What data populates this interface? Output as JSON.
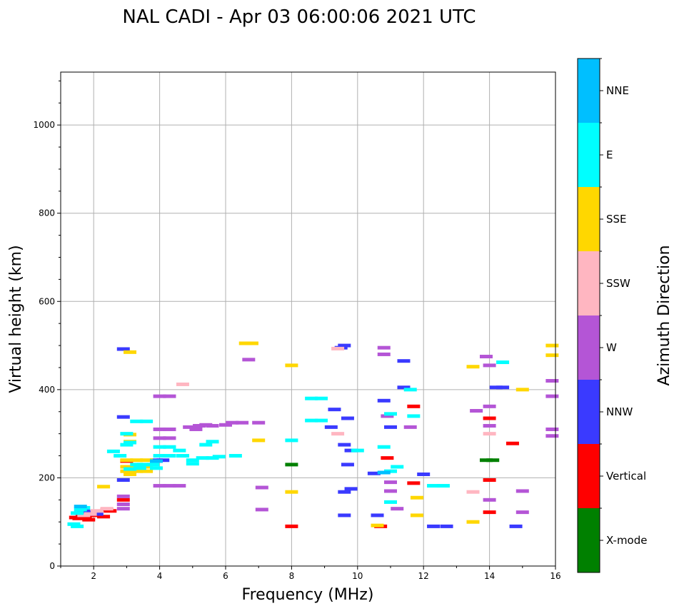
{
  "chart_data": {
    "type": "scatter",
    "title": "NAL CADI - Apr 03 06:00:06 2021 UTC",
    "xlabel": "Frequency (MHz)",
    "ylabel": "Virtual height (km)",
    "xlim": [
      1,
      16
    ],
    "ylim": [
      0,
      1120
    ],
    "xticks": [
      2,
      4,
      6,
      8,
      10,
      12,
      14,
      16
    ],
    "yticks": [
      0,
      200,
      400,
      600,
      800,
      1000
    ],
    "grid": true,
    "colorbar": {
      "label": "Azimuth Direction",
      "categories": [
        {
          "name": "X-mode",
          "color": "#008000"
        },
        {
          "name": "Vertical",
          "color": "#ff0000"
        },
        {
          "name": "NNW",
          "color": "#3a3aff"
        },
        {
          "name": "W",
          "color": "#b455d6"
        },
        {
          "name": "SSW",
          "color": "#ffb6c1"
        },
        {
          "name": "SSE",
          "color": "#ffd700"
        },
        {
          "name": "E",
          "color": "#00ffff"
        },
        {
          "name": "NNE",
          "color": "#00bfff"
        }
      ]
    },
    "series": [
      {
        "name": "X-mode",
        "points": [
          [
            13.9,
            240
          ],
          [
            14.1,
            240
          ],
          [
            8.0,
            230
          ]
        ]
      },
      {
        "name": "Vertical",
        "points": [
          [
            1.45,
            110
          ],
          [
            1.55,
            108
          ],
          [
            1.65,
            112
          ],
          [
            1.75,
            110
          ],
          [
            1.85,
            105
          ],
          [
            2.0,
            115
          ],
          [
            2.3,
            112
          ],
          [
            2.4,
            128
          ],
          [
            2.5,
            125
          ],
          [
            2.9,
            150
          ],
          [
            3.0,
            238
          ],
          [
            10.7,
            90
          ],
          [
            10.9,
            245
          ],
          [
            11.7,
            362
          ],
          [
            11.7,
            188
          ],
          [
            14.0,
            335
          ],
          [
            14.0,
            195
          ],
          [
            14.0,
            122
          ],
          [
            14.7,
            278
          ],
          [
            8.0,
            90
          ]
        ]
      },
      {
        "name": "NNW",
        "points": [
          [
            1.6,
            120
          ],
          [
            1.7,
            125
          ],
          [
            1.8,
            118
          ],
          [
            2.0,
            122
          ],
          [
            2.1,
            118
          ],
          [
            2.9,
            338
          ],
          [
            2.9,
            195
          ],
          [
            2.9,
            492
          ],
          [
            3.9,
            240
          ],
          [
            4.1,
            240
          ],
          [
            9.5,
            495
          ],
          [
            9.6,
            500
          ],
          [
            9.7,
            335
          ],
          [
            9.6,
            275
          ],
          [
            9.7,
            230
          ],
          [
            9.8,
            262
          ],
          [
            9.3,
            355
          ],
          [
            9.2,
            315
          ],
          [
            9.6,
            168
          ],
          [
            9.8,
            175
          ],
          [
            9.6,
            115
          ],
          [
            10.5,
            210
          ],
          [
            10.6,
            115
          ],
          [
            11.0,
            315
          ],
          [
            11.4,
            465
          ],
          [
            11.4,
            405
          ],
          [
            12.0,
            208
          ],
          [
            12.3,
            90
          ],
          [
            12.7,
            90
          ],
          [
            14.2,
            405
          ],
          [
            14.4,
            405
          ],
          [
            14.8,
            90
          ],
          [
            10.8,
            375
          ]
        ]
      },
      {
        "name": "W",
        "points": [
          [
            2.9,
            130
          ],
          [
            2.9,
            140
          ],
          [
            2.9,
            158
          ],
          [
            4.0,
            182
          ],
          [
            4.3,
            182
          ],
          [
            4.6,
            182
          ],
          [
            4.0,
            290
          ],
          [
            4.3,
            290
          ],
          [
            4.0,
            310
          ],
          [
            4.3,
            310
          ],
          [
            4.0,
            385
          ],
          [
            4.3,
            385
          ],
          [
            4.9,
            315
          ],
          [
            5.1,
            310
          ],
          [
            5.2,
            318
          ],
          [
            5.4,
            320
          ],
          [
            5.6,
            318
          ],
          [
            6.0,
            320
          ],
          [
            6.2,
            325
          ],
          [
            6.5,
            325
          ],
          [
            6.7,
            468
          ],
          [
            7.0,
            325
          ],
          [
            7.1,
            178
          ],
          [
            7.1,
            128
          ],
          [
            10.8,
            480
          ],
          [
            10.8,
            495
          ],
          [
            10.9,
            340
          ],
          [
            11.0,
            170
          ],
          [
            11.0,
            190
          ],
          [
            11.2,
            130
          ],
          [
            11.6,
            315
          ],
          [
            13.9,
            475
          ],
          [
            14.0,
            455
          ],
          [
            14.0,
            362
          ],
          [
            14.0,
            318
          ],
          [
            14.0,
            150
          ],
          [
            15.0,
            170
          ],
          [
            15.0,
            122
          ],
          [
            15.9,
            420
          ],
          [
            15.9,
            385
          ],
          [
            15.9,
            310
          ],
          [
            15.9,
            295
          ],
          [
            13.6,
            352
          ]
        ]
      },
      {
        "name": "SSW",
        "points": [
          [
            1.7,
            115
          ],
          [
            1.9,
            118
          ],
          [
            2.1,
            125
          ],
          [
            2.4,
            130
          ],
          [
            4.7,
            412
          ],
          [
            9.4,
            300
          ],
          [
            9.4,
            493
          ],
          [
            13.5,
            168
          ],
          [
            14.0,
            300
          ]
        ]
      },
      {
        "name": "SSE",
        "points": [
          [
            3.1,
            485
          ],
          [
            3.1,
            298
          ],
          [
            3.1,
            282
          ],
          [
            3.0,
            240
          ],
          [
            3.3,
            240
          ],
          [
            3.6,
            240
          ],
          [
            3.0,
            225
          ],
          [
            3.3,
            225
          ],
          [
            3.6,
            225
          ],
          [
            3.0,
            215
          ],
          [
            3.3,
            215
          ],
          [
            3.6,
            215
          ],
          [
            3.1,
            208
          ],
          [
            2.3,
            180
          ],
          [
            6.6,
            505
          ],
          [
            6.8,
            505
          ],
          [
            8.0,
            455
          ],
          [
            8.0,
            168
          ],
          [
            11.8,
            155
          ],
          [
            11.8,
            115
          ],
          [
            13.5,
            100
          ],
          [
            13.5,
            452
          ],
          [
            15.0,
            400
          ],
          [
            15.9,
            500
          ],
          [
            15.9,
            478
          ],
          [
            10.6,
            92
          ],
          [
            7.0,
            285
          ]
        ]
      },
      {
        "name": "E",
        "points": [
          [
            1.4,
            95
          ],
          [
            1.5,
            120
          ],
          [
            1.6,
            128
          ],
          [
            1.7,
            132
          ],
          [
            1.5,
            90
          ],
          [
            2.6,
            260
          ],
          [
            2.8,
            250
          ],
          [
            3.0,
            300
          ],
          [
            3.1,
            280
          ],
          [
            3.3,
            328
          ],
          [
            3.6,
            328
          ],
          [
            3.0,
            275
          ],
          [
            3.3,
            230
          ],
          [
            3.5,
            230
          ],
          [
            3.8,
            230
          ],
          [
            3.1,
            220
          ],
          [
            3.4,
            222
          ],
          [
            3.9,
            222
          ],
          [
            4.0,
            270
          ],
          [
            4.3,
            270
          ],
          [
            4.0,
            250
          ],
          [
            4.3,
            250
          ],
          [
            4.6,
            262
          ],
          [
            4.7,
            250
          ],
          [
            5.0,
            240
          ],
          [
            5.0,
            232
          ],
          [
            5.4,
            275
          ],
          [
            5.6,
            282
          ],
          [
            5.3,
            245
          ],
          [
            5.6,
            245
          ],
          [
            5.8,
            248
          ],
          [
            6.3,
            250
          ],
          [
            8.6,
            380
          ],
          [
            8.9,
            380
          ],
          [
            8.6,
            330
          ],
          [
            8.9,
            330
          ],
          [
            10.0,
            262
          ],
          [
            10.8,
            270
          ],
          [
            11.0,
            215
          ],
          [
            11.2,
            225
          ],
          [
            11.0,
            145
          ],
          [
            11.0,
            345
          ],
          [
            11.7,
            340
          ],
          [
            11.6,
            400
          ],
          [
            12.3,
            182
          ],
          [
            12.6,
            182
          ],
          [
            14.4,
            462
          ],
          [
            8.0,
            285
          ]
        ]
      },
      {
        "name": "NNE",
        "points": [
          [
            1.6,
            135
          ],
          [
            3.9,
            238
          ],
          [
            10.8,
            212
          ]
        ]
      }
    ]
  }
}
